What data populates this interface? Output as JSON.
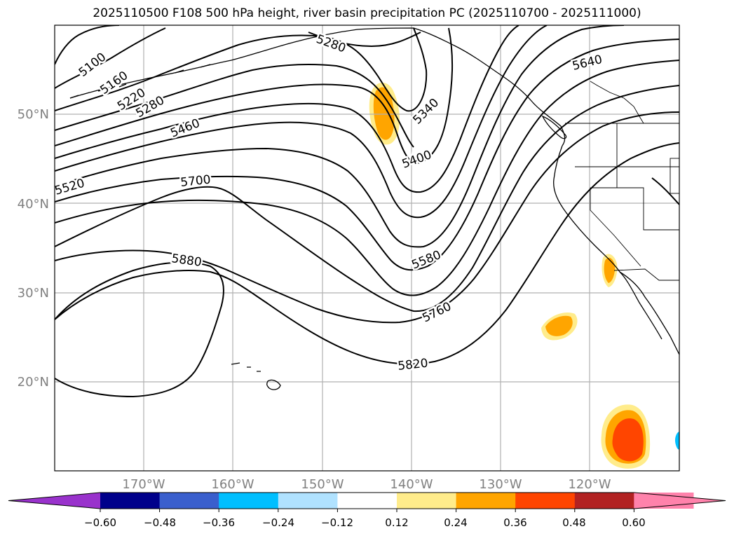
{
  "title": "2025110500 F108 500 hPa height, river basin precipitation PC (2025110700 - 2025111000)",
  "map": {
    "lat_labels": [
      "50°N",
      "40°N",
      "30°N",
      "20°N"
    ],
    "lon_labels": [
      "170°W",
      "160°W",
      "150°W",
      "140°W",
      "130°W",
      "120°W"
    ],
    "contour_labels": [
      "5100",
      "5160",
      "5220",
      "5280",
      "5280",
      "5340",
      "5400",
      "5460",
      "5520",
      "5580",
      "5640",
      "5700",
      "5760",
      "5820",
      "5880"
    ],
    "label_color": "#808080"
  },
  "colorbar": {
    "colors": [
      "#9932cc",
      "#00008b",
      "#3a5fcd",
      "#00bfff",
      "#b0e2ff",
      "#ffffff",
      "#ffec8b",
      "#ffa500",
      "#ff4500",
      "#b22222",
      "#ff82ab",
      "#ff82ab"
    ],
    "tick_labels": [
      "−0.60",
      "−0.48",
      "−0.36",
      "−0.24",
      "−0.12",
      "0.12",
      "0.24",
      "0.36",
      "0.48",
      "0.60"
    ]
  }
}
